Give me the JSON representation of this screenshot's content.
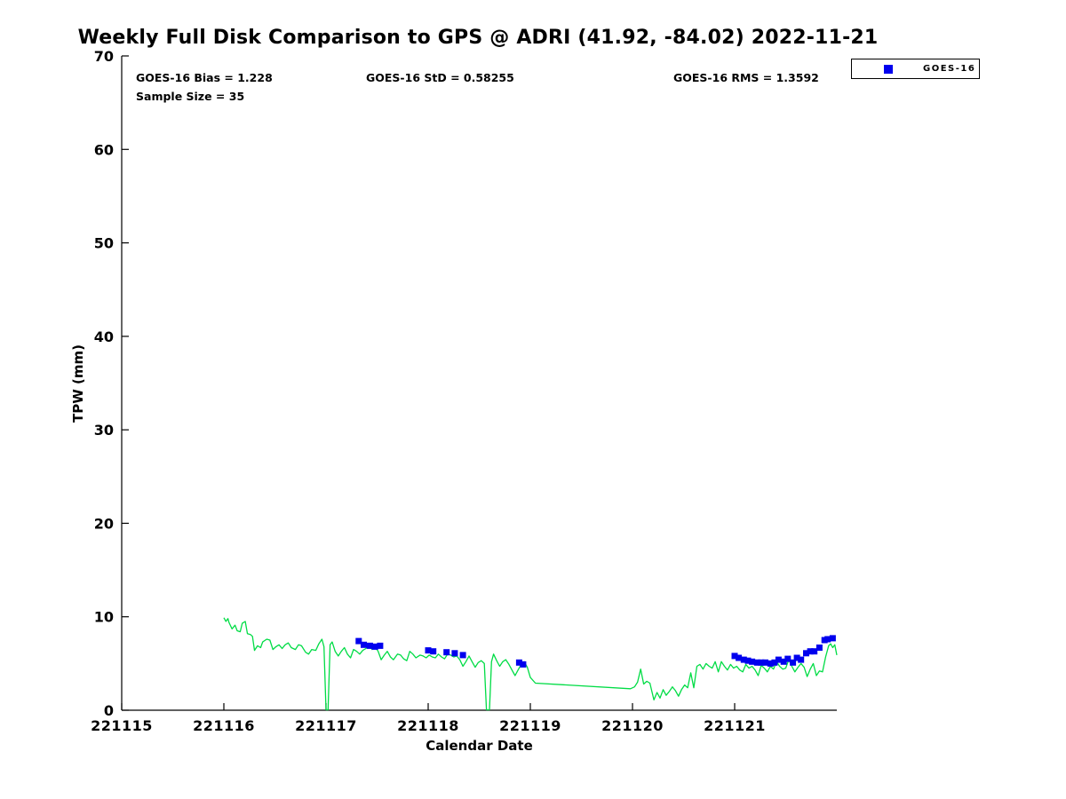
{
  "page": {
    "background": "#ffffff",
    "text_color": "#000000"
  },
  "chart_data": {
    "type": "line",
    "title": "Weekly Full Disk Comparison to GPS @ ADRI (41.92, -84.02) 2022-11-21",
    "xlabel": "Calendar Date",
    "ylabel": "TPW (mm)",
    "xlim": [
      221115,
      221122
    ],
    "ylim": [
      0,
      70
    ],
    "xticks": [
      221115,
      221116,
      221117,
      221118,
      221119,
      221120,
      221121
    ],
    "yticks": [
      0,
      10,
      20,
      30,
      40,
      50,
      60,
      70
    ],
    "grid": false,
    "legend": {
      "position": "top-right",
      "entries": [
        {
          "label": "GOES-16",
          "color": "#0000EE",
          "marker": "square"
        }
      ]
    },
    "annotations": [
      {
        "id": "bias",
        "text": "GOES-16 Bias = 1.228"
      },
      {
        "id": "std",
        "text": "GOES-16 StD = 0.58255"
      },
      {
        "id": "rms",
        "text": "GOES-16 RMS = 1.3592"
      },
      {
        "id": "sample_size",
        "text": "Sample Size = 35"
      }
    ],
    "series": [
      {
        "name": "GPS",
        "type": "line",
        "color": "#00DC45",
        "line_width": 1.3,
        "points": [
          [
            221116.0,
            9.9
          ],
          [
            221116.02,
            9.5
          ],
          [
            221116.04,
            9.8
          ],
          [
            221116.05,
            9.4
          ],
          [
            221116.08,
            8.7
          ],
          [
            221116.11,
            9.1
          ],
          [
            221116.13,
            8.5
          ],
          [
            221116.16,
            8.4
          ],
          [
            221116.18,
            9.3
          ],
          [
            221116.21,
            9.5
          ],
          [
            221116.23,
            8.2
          ],
          [
            221116.26,
            8.1
          ],
          [
            221116.28,
            7.9
          ],
          [
            221116.3,
            6.4
          ],
          [
            221116.33,
            6.9
          ],
          [
            221116.36,
            6.7
          ],
          [
            221116.38,
            7.3
          ],
          [
            221116.42,
            7.6
          ],
          [
            221116.45,
            7.5
          ],
          [
            221116.48,
            6.5
          ],
          [
            221116.51,
            6.8
          ],
          [
            221116.54,
            7.0
          ],
          [
            221116.57,
            6.6
          ],
          [
            221116.6,
            7.0
          ],
          [
            221116.63,
            7.2
          ],
          [
            221116.66,
            6.7
          ],
          [
            221116.7,
            6.5
          ],
          [
            221116.73,
            7.0
          ],
          [
            221116.76,
            6.9
          ],
          [
            221116.8,
            6.2
          ],
          [
            221116.83,
            6.0
          ],
          [
            221116.86,
            6.5
          ],
          [
            221116.9,
            6.4
          ],
          [
            221116.93,
            7.1
          ],
          [
            221116.96,
            7.6
          ],
          [
            221116.98,
            6.8
          ],
          [
            221117.0,
            0.05
          ],
          [
            221117.02,
            0.05
          ],
          [
            221117.04,
            7.0
          ],
          [
            221117.06,
            7.3
          ],
          [
            221117.09,
            6.3
          ],
          [
            221117.12,
            5.8
          ],
          [
            221117.15,
            6.3
          ],
          [
            221117.18,
            6.7
          ],
          [
            221117.21,
            6.0
          ],
          [
            221117.24,
            5.6
          ],
          [
            221117.27,
            6.5
          ],
          [
            221117.3,
            6.3
          ],
          [
            221117.33,
            6.0
          ],
          [
            221117.36,
            6.4
          ],
          [
            221117.39,
            6.6
          ],
          [
            221117.42,
            6.9
          ],
          [
            221117.45,
            6.5
          ],
          [
            221117.48,
            6.8
          ],
          [
            221117.51,
            6.3
          ],
          [
            221117.54,
            5.4
          ],
          [
            221117.57,
            5.9
          ],
          [
            221117.6,
            6.3
          ],
          [
            221117.63,
            5.7
          ],
          [
            221117.66,
            5.4
          ],
          [
            221117.7,
            6.0
          ],
          [
            221117.73,
            5.9
          ],
          [
            221117.76,
            5.5
          ],
          [
            221117.79,
            5.3
          ],
          [
            221117.82,
            6.3
          ],
          [
            221117.85,
            6.0
          ],
          [
            221117.88,
            5.6
          ],
          [
            221117.92,
            5.9
          ],
          [
            221117.95,
            5.8
          ],
          [
            221117.98,
            5.6
          ],
          [
            221118.01,
            5.9
          ],
          [
            221118.04,
            5.7
          ],
          [
            221118.07,
            5.6
          ],
          [
            221118.1,
            6.0
          ],
          [
            221118.13,
            5.7
          ],
          [
            221118.16,
            5.5
          ],
          [
            221118.19,
            6.0
          ],
          [
            221118.22,
            5.9
          ],
          [
            221118.25,
            5.7
          ],
          [
            221118.28,
            5.8
          ],
          [
            221118.31,
            5.4
          ],
          [
            221118.34,
            4.7
          ],
          [
            221118.37,
            5.2
          ],
          [
            221118.4,
            5.8
          ],
          [
            221118.43,
            5.2
          ],
          [
            221118.46,
            4.6
          ],
          [
            221118.49,
            5.1
          ],
          [
            221118.52,
            5.3
          ],
          [
            221118.55,
            5.0
          ],
          [
            221118.57,
            0.05
          ],
          [
            221118.6,
            0.05
          ],
          [
            221118.62,
            5.2
          ],
          [
            221118.64,
            6.0
          ],
          [
            221118.67,
            5.3
          ],
          [
            221118.7,
            4.7
          ],
          [
            221118.73,
            5.2
          ],
          [
            221118.76,
            5.4
          ],
          [
            221118.79,
            4.9
          ],
          [
            221118.82,
            4.3
          ],
          [
            221118.85,
            3.7
          ],
          [
            221118.88,
            4.3
          ],
          [
            221118.91,
            4.9
          ],
          [
            221118.94,
            5.2
          ],
          [
            221118.97,
            4.6
          ],
          [
            221119.0,
            3.5
          ],
          [
            221119.05,
            2.9
          ],
          [
            221119.98,
            2.3
          ],
          [
            221120.02,
            2.5
          ],
          [
            221120.05,
            3.0
          ],
          [
            221120.08,
            4.4
          ],
          [
            221120.11,
            2.8
          ],
          [
            221120.14,
            3.1
          ],
          [
            221120.17,
            2.9
          ],
          [
            221120.21,
            1.1
          ],
          [
            221120.24,
            1.9
          ],
          [
            221120.27,
            1.3
          ],
          [
            221120.3,
            2.2
          ],
          [
            221120.33,
            1.6
          ],
          [
            221120.36,
            2.0
          ],
          [
            221120.39,
            2.5
          ],
          [
            221120.42,
            2.1
          ],
          [
            221120.45,
            1.5
          ],
          [
            221120.48,
            2.2
          ],
          [
            221120.51,
            2.7
          ],
          [
            221120.54,
            2.4
          ],
          [
            221120.57,
            4.0
          ],
          [
            221120.6,
            2.4
          ],
          [
            221120.63,
            4.7
          ],
          [
            221120.66,
            4.9
          ],
          [
            221120.69,
            4.4
          ],
          [
            221120.72,
            5.0
          ],
          [
            221120.75,
            4.7
          ],
          [
            221120.78,
            4.5
          ],
          [
            221120.81,
            5.2
          ],
          [
            221120.84,
            4.1
          ],
          [
            221120.87,
            5.2
          ],
          [
            221120.9,
            4.7
          ],
          [
            221120.93,
            4.3
          ],
          [
            221120.96,
            4.9
          ],
          [
            221120.99,
            4.5
          ],
          [
            221121.02,
            4.7
          ],
          [
            221121.05,
            4.3
          ],
          [
            221121.08,
            4.1
          ],
          [
            221121.11,
            4.9
          ],
          [
            221121.14,
            4.5
          ],
          [
            221121.17,
            4.7
          ],
          [
            221121.2,
            4.3
          ],
          [
            221121.23,
            3.7
          ],
          [
            221121.26,
            4.8
          ],
          [
            221121.29,
            4.5
          ],
          [
            221121.32,
            4.1
          ],
          [
            221121.35,
            4.7
          ],
          [
            221121.38,
            4.4
          ],
          [
            221121.41,
            5.2
          ],
          [
            221121.44,
            4.7
          ],
          [
            221121.47,
            4.4
          ],
          [
            221121.5,
            4.5
          ],
          [
            221121.53,
            5.4
          ],
          [
            221121.56,
            4.7
          ],
          [
            221121.59,
            4.1
          ],
          [
            221121.62,
            4.6
          ],
          [
            221121.65,
            5.0
          ],
          [
            221121.68,
            4.6
          ],
          [
            221121.71,
            3.6
          ],
          [
            221121.74,
            4.4
          ],
          [
            221121.77,
            5.0
          ],
          [
            221121.8,
            3.7
          ],
          [
            221121.83,
            4.2
          ],
          [
            221121.86,
            4.1
          ],
          [
            221121.89,
            5.7
          ],
          [
            221121.92,
            6.9
          ],
          [
            221121.94,
            7.1
          ],
          [
            221121.96,
            6.7
          ],
          [
            221121.98,
            7.0
          ],
          [
            221122.0,
            5.9
          ]
        ]
      },
      {
        "name": "GOES-16",
        "type": "scatter",
        "marker": "square",
        "marker_size": 7,
        "color": "#0000EE",
        "points": [
          [
            221117.32,
            7.4
          ],
          [
            221117.37,
            7.0
          ],
          [
            221117.43,
            6.9
          ],
          [
            221117.48,
            6.8
          ],
          [
            221117.53,
            6.9
          ],
          [
            221118.0,
            6.4
          ],
          [
            221118.05,
            6.3
          ],
          [
            221118.18,
            6.2
          ],
          [
            221118.26,
            6.1
          ],
          [
            221118.34,
            5.9
          ],
          [
            221118.89,
            5.1
          ],
          [
            221118.93,
            4.9
          ],
          [
            221121.0,
            5.8
          ],
          [
            221121.04,
            5.6
          ],
          [
            221121.09,
            5.4
          ],
          [
            221121.13,
            5.3
          ],
          [
            221121.17,
            5.2
          ],
          [
            221121.22,
            5.1
          ],
          [
            221121.26,
            5.1
          ],
          [
            221121.3,
            5.1
          ],
          [
            221121.35,
            5.0
          ],
          [
            221121.39,
            5.1
          ],
          [
            221121.43,
            5.4
          ],
          [
            221121.48,
            5.2
          ],
          [
            221121.52,
            5.5
          ],
          [
            221121.57,
            5.1
          ],
          [
            221121.61,
            5.6
          ],
          [
            221121.65,
            5.4
          ],
          [
            221121.7,
            6.1
          ],
          [
            221121.74,
            6.3
          ],
          [
            221121.78,
            6.3
          ],
          [
            221121.83,
            6.7
          ],
          [
            221121.88,
            7.5
          ],
          [
            221121.91,
            7.6
          ],
          [
            221121.96,
            7.7
          ]
        ]
      }
    ]
  }
}
